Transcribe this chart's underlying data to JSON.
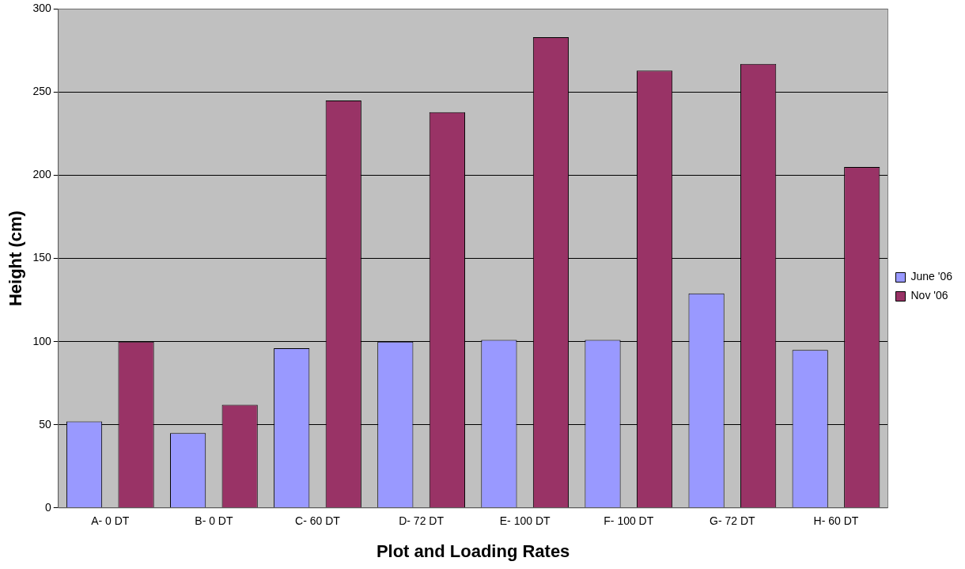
{
  "chart_data": {
    "type": "bar",
    "xlabel": "Plot and Loading Rates",
    "ylabel": "Height (cm)",
    "categories": [
      "A- 0 DT",
      "B- 0 DT",
      "C- 60 DT",
      "D- 72 DT",
      "E- 100 DT",
      "F- 100 DT",
      "G- 72 DT",
      "H- 60 DT"
    ],
    "series": [
      {
        "name": "June '06",
        "color": "#9999ff",
        "values": [
          52,
          45,
          96,
          100,
          101,
          101,
          129,
          95
        ]
      },
      {
        "name": "Nov '06",
        "color": "#993366",
        "values": [
          100,
          62,
          245,
          238,
          283,
          263,
          267,
          205
        ]
      }
    ],
    "ylim": [
      0,
      300
    ],
    "yticks": [
      0,
      50,
      100,
      150,
      200,
      250,
      300
    ],
    "grid": "y",
    "legend": "right"
  }
}
